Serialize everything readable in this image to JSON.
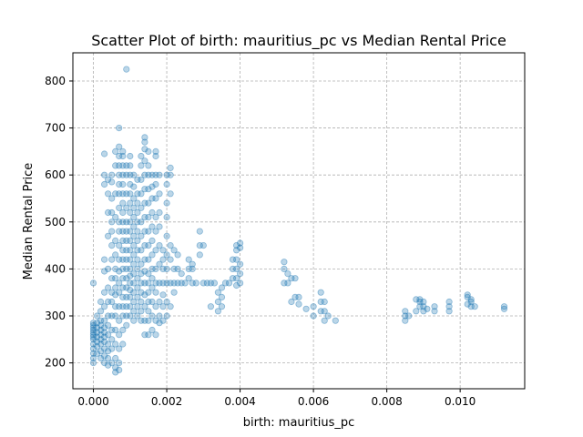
{
  "chart_data": {
    "type": "scatter",
    "title": "Scatter Plot of birth: mauritius_pc vs Median Rental Price",
    "xlabel": "birth: mauritius_pc",
    "ylabel": "Median Rental Price",
    "xlim": [
      -0.00056,
      0.01176
    ],
    "ylim": [
      145,
      860
    ],
    "xticks": [
      0.0,
      0.002,
      0.004,
      0.006,
      0.008,
      0.01
    ],
    "xtick_labels": [
      "0.000",
      "0.002",
      "0.004",
      "0.006",
      "0.008",
      "0.010"
    ],
    "yticks": [
      200,
      300,
      400,
      500,
      600,
      700,
      800
    ],
    "ytick_labels": [
      "200",
      "300",
      "400",
      "500",
      "600",
      "700",
      "800"
    ],
    "grid": true,
    "marker_color": "#1f77b4",
    "marker_alpha": 0.3,
    "points": [
      [
        0.0,
        200
      ],
      [
        0.0,
        210
      ],
      [
        0.0,
        220
      ],
      [
        0.0,
        230
      ],
      [
        0.0,
        240
      ],
      [
        0.0,
        250
      ],
      [
        0.0,
        255
      ],
      [
        0.0,
        260
      ],
      [
        0.0,
        265
      ],
      [
        0.0,
        270
      ],
      [
        0.0,
        275
      ],
      [
        0.0,
        280
      ],
      [
        0.0,
        285
      ],
      [
        0.0,
        370
      ],
      [
        0.0001,
        220
      ],
      [
        0.0001,
        235
      ],
      [
        0.0001,
        245
      ],
      [
        0.0001,
        255
      ],
      [
        0.0001,
        265
      ],
      [
        0.0001,
        275
      ],
      [
        0.0001,
        285
      ],
      [
        0.0001,
        300
      ],
      [
        0.0002,
        210
      ],
      [
        0.0002,
        225
      ],
      [
        0.0002,
        240
      ],
      [
        0.0002,
        250
      ],
      [
        0.0002,
        260
      ],
      [
        0.0002,
        270
      ],
      [
        0.0002,
        280
      ],
      [
        0.0002,
        290
      ],
      [
        0.0002,
        310
      ],
      [
        0.0002,
        330
      ],
      [
        0.0003,
        200
      ],
      [
        0.0003,
        215
      ],
      [
        0.0003,
        230
      ],
      [
        0.0003,
        245
      ],
      [
        0.0003,
        255
      ],
      [
        0.0003,
        265
      ],
      [
        0.0003,
        275
      ],
      [
        0.0003,
        290
      ],
      [
        0.0003,
        320
      ],
      [
        0.0003,
        350
      ],
      [
        0.0003,
        395
      ],
      [
        0.0003,
        420
      ],
      [
        0.0003,
        580
      ],
      [
        0.0003,
        600
      ],
      [
        0.0003,
        645
      ],
      [
        0.0004,
        195
      ],
      [
        0.0004,
        210
      ],
      [
        0.0004,
        225
      ],
      [
        0.0004,
        240
      ],
      [
        0.0004,
        260
      ],
      [
        0.0004,
        280
      ],
      [
        0.0004,
        300
      ],
      [
        0.0004,
        330
      ],
      [
        0.0004,
        360
      ],
      [
        0.0004,
        400
      ],
      [
        0.0004,
        470
      ],
      [
        0.0004,
        520
      ],
      [
        0.0004,
        560
      ],
      [
        0.0004,
        590
      ],
      [
        0.0005,
        200
      ],
      [
        0.0005,
        230
      ],
      [
        0.0005,
        250
      ],
      [
        0.0005,
        270
      ],
      [
        0.0005,
        300
      ],
      [
        0.0005,
        330
      ],
      [
        0.0005,
        350
      ],
      [
        0.0005,
        380
      ],
      [
        0.0005,
        420
      ],
      [
        0.0005,
        450
      ],
      [
        0.0005,
        480
      ],
      [
        0.0005,
        500
      ],
      [
        0.0005,
        520
      ],
      [
        0.0005,
        550
      ],
      [
        0.0005,
        585
      ],
      [
        0.0005,
        600
      ],
      [
        0.0006,
        180
      ],
      [
        0.0006,
        190
      ],
      [
        0.0006,
        210
      ],
      [
        0.0006,
        240
      ],
      [
        0.0006,
        270
      ],
      [
        0.0006,
        300
      ],
      [
        0.0006,
        320
      ],
      [
        0.0006,
        345
      ],
      [
        0.0006,
        360
      ],
      [
        0.0006,
        380
      ],
      [
        0.0006,
        400
      ],
      [
        0.0006,
        430
      ],
      [
        0.0006,
        460
      ],
      [
        0.0006,
        510
      ],
      [
        0.0006,
        560
      ],
      [
        0.0006,
        620
      ],
      [
        0.0006,
        650
      ],
      [
        0.0007,
        185
      ],
      [
        0.0007,
        200
      ],
      [
        0.0007,
        230
      ],
      [
        0.0007,
        260
      ],
      [
        0.0007,
        290
      ],
      [
        0.0007,
        320
      ],
      [
        0.0007,
        350
      ],
      [
        0.0007,
        370
      ],
      [
        0.0007,
        395
      ],
      [
        0.0007,
        420
      ],
      [
        0.0007,
        450
      ],
      [
        0.0007,
        480
      ],
      [
        0.0007,
        500
      ],
      [
        0.0007,
        530
      ],
      [
        0.0007,
        560
      ],
      [
        0.0007,
        580
      ],
      [
        0.0007,
        600
      ],
      [
        0.0007,
        620
      ],
      [
        0.0007,
        640
      ],
      [
        0.0007,
        660
      ],
      [
        0.0007,
        700
      ],
      [
        0.0008,
        240
      ],
      [
        0.0008,
        270
      ],
      [
        0.0008,
        300
      ],
      [
        0.0008,
        320
      ],
      [
        0.0008,
        340
      ],
      [
        0.0008,
        360
      ],
      [
        0.0008,
        380
      ],
      [
        0.0008,
        400
      ],
      [
        0.0008,
        420
      ],
      [
        0.0008,
        440
      ],
      [
        0.0008,
        460
      ],
      [
        0.0008,
        480
      ],
      [
        0.0008,
        500
      ],
      [
        0.0008,
        520
      ],
      [
        0.0008,
        540
      ],
      [
        0.0008,
        560
      ],
      [
        0.0008,
        580
      ],
      [
        0.0008,
        600
      ],
      [
        0.0008,
        620
      ],
      [
        0.0008,
        640
      ],
      [
        0.0008,
        650
      ],
      [
        0.0009,
        280
      ],
      [
        0.0009,
        300
      ],
      [
        0.0009,
        320
      ],
      [
        0.0009,
        340
      ],
      [
        0.0009,
        360
      ],
      [
        0.0009,
        380
      ],
      [
        0.0009,
        400
      ],
      [
        0.0009,
        420
      ],
      [
        0.0009,
        440
      ],
      [
        0.0009,
        460
      ],
      [
        0.0009,
        480
      ],
      [
        0.0009,
        500
      ],
      [
        0.0009,
        530
      ],
      [
        0.0009,
        560
      ],
      [
        0.0009,
        600
      ],
      [
        0.0009,
        620
      ],
      [
        0.0009,
        825
      ],
      [
        0.001,
        300
      ],
      [
        0.001,
        320
      ],
      [
        0.001,
        340
      ],
      [
        0.001,
        355
      ],
      [
        0.001,
        370
      ],
      [
        0.001,
        385
      ],
      [
        0.001,
        400
      ],
      [
        0.001,
        420
      ],
      [
        0.001,
        440
      ],
      [
        0.001,
        460
      ],
      [
        0.001,
        480
      ],
      [
        0.001,
        500
      ],
      [
        0.001,
        520
      ],
      [
        0.001,
        540
      ],
      [
        0.001,
        560
      ],
      [
        0.001,
        580
      ],
      [
        0.001,
        600
      ],
      [
        0.001,
        620
      ],
      [
        0.001,
        640
      ],
      [
        0.0011,
        290
      ],
      [
        0.0011,
        310
      ],
      [
        0.0011,
        330
      ],
      [
        0.0011,
        350
      ],
      [
        0.0011,
        370
      ],
      [
        0.0011,
        390
      ],
      [
        0.0011,
        410
      ],
      [
        0.0011,
        430
      ],
      [
        0.0011,
        450
      ],
      [
        0.0011,
        470
      ],
      [
        0.0011,
        490
      ],
      [
        0.0011,
        510
      ],
      [
        0.0011,
        530
      ],
      [
        0.0011,
        550
      ],
      [
        0.0011,
        575
      ],
      [
        0.0011,
        600
      ],
      [
        0.0012,
        300
      ],
      [
        0.0012,
        320
      ],
      [
        0.0012,
        340
      ],
      [
        0.0012,
        360
      ],
      [
        0.0012,
        380
      ],
      [
        0.0012,
        400
      ],
      [
        0.0012,
        420
      ],
      [
        0.0012,
        440
      ],
      [
        0.0012,
        460
      ],
      [
        0.0012,
        480
      ],
      [
        0.0012,
        500
      ],
      [
        0.0012,
        520
      ],
      [
        0.0012,
        540
      ],
      [
        0.0012,
        560
      ],
      [
        0.0012,
        590
      ],
      [
        0.0013,
        290
      ],
      [
        0.0013,
        310
      ],
      [
        0.0013,
        330
      ],
      [
        0.0013,
        350
      ],
      [
        0.0013,
        370
      ],
      [
        0.0013,
        390
      ],
      [
        0.0013,
        410
      ],
      [
        0.0013,
        440
      ],
      [
        0.0013,
        470
      ],
      [
        0.0013,
        500
      ],
      [
        0.0013,
        530
      ],
      [
        0.0013,
        560
      ],
      [
        0.0013,
        590
      ],
      [
        0.0013,
        620
      ],
      [
        0.0013,
        640
      ],
      [
        0.0014,
        260
      ],
      [
        0.0014,
        290
      ],
      [
        0.0014,
        320
      ],
      [
        0.0014,
        345
      ],
      [
        0.0014,
        370
      ],
      [
        0.0014,
        395
      ],
      [
        0.0014,
        420
      ],
      [
        0.0014,
        450
      ],
      [
        0.0014,
        480
      ],
      [
        0.0014,
        510
      ],
      [
        0.0014,
        540
      ],
      [
        0.0014,
        570
      ],
      [
        0.0014,
        600
      ],
      [
        0.0014,
        630
      ],
      [
        0.0014,
        655
      ],
      [
        0.0014,
        670
      ],
      [
        0.0014,
        680
      ],
      [
        0.0015,
        260
      ],
      [
        0.0015,
        290
      ],
      [
        0.0015,
        310
      ],
      [
        0.0015,
        330
      ],
      [
        0.0015,
        350
      ],
      [
        0.0015,
        370
      ],
      [
        0.0015,
        390
      ],
      [
        0.0015,
        420
      ],
      [
        0.0015,
        450
      ],
      [
        0.0015,
        480
      ],
      [
        0.0015,
        510
      ],
      [
        0.0015,
        540
      ],
      [
        0.0015,
        570
      ],
      [
        0.0015,
        600
      ],
      [
        0.0015,
        620
      ],
      [
        0.0015,
        650
      ],
      [
        0.0016,
        270
      ],
      [
        0.0016,
        300
      ],
      [
        0.0016,
        330
      ],
      [
        0.0016,
        360
      ],
      [
        0.0016,
        380
      ],
      [
        0.0016,
        400
      ],
      [
        0.0016,
        430
      ],
      [
        0.0016,
        460
      ],
      [
        0.0016,
        490
      ],
      [
        0.0016,
        520
      ],
      [
        0.0016,
        550
      ],
      [
        0.0016,
        575
      ],
      [
        0.0016,
        600
      ],
      [
        0.0017,
        260
      ],
      [
        0.0017,
        290
      ],
      [
        0.0017,
        320
      ],
      [
        0.0017,
        350
      ],
      [
        0.0017,
        370
      ],
      [
        0.0017,
        400
      ],
      [
        0.0017,
        440
      ],
      [
        0.0017,
        480
      ],
      [
        0.0017,
        510
      ],
      [
        0.0017,
        550
      ],
      [
        0.0017,
        580
      ],
      [
        0.0017,
        600
      ],
      [
        0.0017,
        640
      ],
      [
        0.0017,
        650
      ],
      [
        0.0018,
        285
      ],
      [
        0.0018,
        300
      ],
      [
        0.0018,
        330
      ],
      [
        0.0018,
        370
      ],
      [
        0.0018,
        410
      ],
      [
        0.0018,
        450
      ],
      [
        0.0018,
        490
      ],
      [
        0.0018,
        520
      ],
      [
        0.0018,
        560
      ],
      [
        0.0018,
        600
      ],
      [
        0.0019,
        290
      ],
      [
        0.0019,
        320
      ],
      [
        0.0019,
        345
      ],
      [
        0.0019,
        370
      ],
      [
        0.0019,
        400
      ],
      [
        0.0019,
        420
      ],
      [
        0.0019,
        440
      ],
      [
        0.002,
        300
      ],
      [
        0.002,
        330
      ],
      [
        0.002,
        370
      ],
      [
        0.002,
        400
      ],
      [
        0.002,
        430
      ],
      [
        0.002,
        470
      ],
      [
        0.002,
        510
      ],
      [
        0.002,
        540
      ],
      [
        0.002,
        580
      ],
      [
        0.002,
        600
      ],
      [
        0.0021,
        320
      ],
      [
        0.0021,
        370
      ],
      [
        0.0021,
        420
      ],
      [
        0.0021,
        450
      ],
      [
        0.0021,
        560
      ],
      [
        0.0021,
        600
      ],
      [
        0.0021,
        615
      ],
      [
        0.0022,
        350
      ],
      [
        0.0022,
        370
      ],
      [
        0.0022,
        400
      ],
      [
        0.0022,
        440
      ],
      [
        0.0023,
        370
      ],
      [
        0.0023,
        400
      ],
      [
        0.0023,
        430
      ],
      [
        0.0024,
        370
      ],
      [
        0.0024,
        390
      ],
      [
        0.0025,
        370
      ],
      [
        0.0026,
        380
      ],
      [
        0.0026,
        400
      ],
      [
        0.0026,
        420
      ],
      [
        0.0027,
        370
      ],
      [
        0.0027,
        400
      ],
      [
        0.0027,
        410
      ],
      [
        0.0028,
        370
      ],
      [
        0.0029,
        430
      ],
      [
        0.0029,
        450
      ],
      [
        0.0029,
        480
      ],
      [
        0.003,
        370
      ],
      [
        0.003,
        450
      ],
      [
        0.0031,
        370
      ],
      [
        0.0032,
        320
      ],
      [
        0.0032,
        370
      ],
      [
        0.0033,
        370
      ],
      [
        0.0034,
        310
      ],
      [
        0.0034,
        330
      ],
      [
        0.0034,
        350
      ],
      [
        0.0035,
        320
      ],
      [
        0.0035,
        340
      ],
      [
        0.0035,
        360
      ],
      [
        0.0036,
        370
      ],
      [
        0.0037,
        370
      ],
      [
        0.0038,
        380
      ],
      [
        0.0038,
        400
      ],
      [
        0.0038,
        420
      ],
      [
        0.0039,
        365
      ],
      [
        0.0039,
        380
      ],
      [
        0.0039,
        400
      ],
      [
        0.0039,
        420
      ],
      [
        0.0039,
        440
      ],
      [
        0.0039,
        450
      ],
      [
        0.004,
        370
      ],
      [
        0.004,
        390
      ],
      [
        0.004,
        410
      ],
      [
        0.004,
        445
      ],
      [
        0.004,
        455
      ],
      [
        0.0052,
        370
      ],
      [
        0.0052,
        400
      ],
      [
        0.0052,
        415
      ],
      [
        0.0053,
        370
      ],
      [
        0.0053,
        390
      ],
      [
        0.0054,
        330
      ],
      [
        0.0054,
        380
      ],
      [
        0.0055,
        340
      ],
      [
        0.0055,
        380
      ],
      [
        0.0056,
        325
      ],
      [
        0.0056,
        340
      ],
      [
        0.0058,
        315
      ],
      [
        0.006,
        300
      ],
      [
        0.006,
        320
      ],
      [
        0.0062,
        310
      ],
      [
        0.0062,
        330
      ],
      [
        0.0062,
        350
      ],
      [
        0.0063,
        290
      ],
      [
        0.0063,
        310
      ],
      [
        0.0063,
        330
      ],
      [
        0.0064,
        300
      ],
      [
        0.0066,
        290
      ],
      [
        0.0085,
        290
      ],
      [
        0.0085,
        300
      ],
      [
        0.0085,
        310
      ],
      [
        0.0086,
        300
      ],
      [
        0.0088,
        310
      ],
      [
        0.0088,
        335
      ],
      [
        0.0089,
        320
      ],
      [
        0.0089,
        330
      ],
      [
        0.0089,
        335
      ],
      [
        0.009,
        310
      ],
      [
        0.009,
        320
      ],
      [
        0.009,
        330
      ],
      [
        0.0091,
        315
      ],
      [
        0.0093,
        310
      ],
      [
        0.0093,
        320
      ],
      [
        0.0097,
        310
      ],
      [
        0.0097,
        320
      ],
      [
        0.0097,
        330
      ],
      [
        0.0102,
        325
      ],
      [
        0.0102,
        340
      ],
      [
        0.0102,
        345
      ],
      [
        0.0103,
        320
      ],
      [
        0.0103,
        330
      ],
      [
        0.0103,
        335
      ],
      [
        0.0104,
        320
      ],
      [
        0.0112,
        315
      ],
      [
        0.0112,
        320
      ]
    ]
  }
}
